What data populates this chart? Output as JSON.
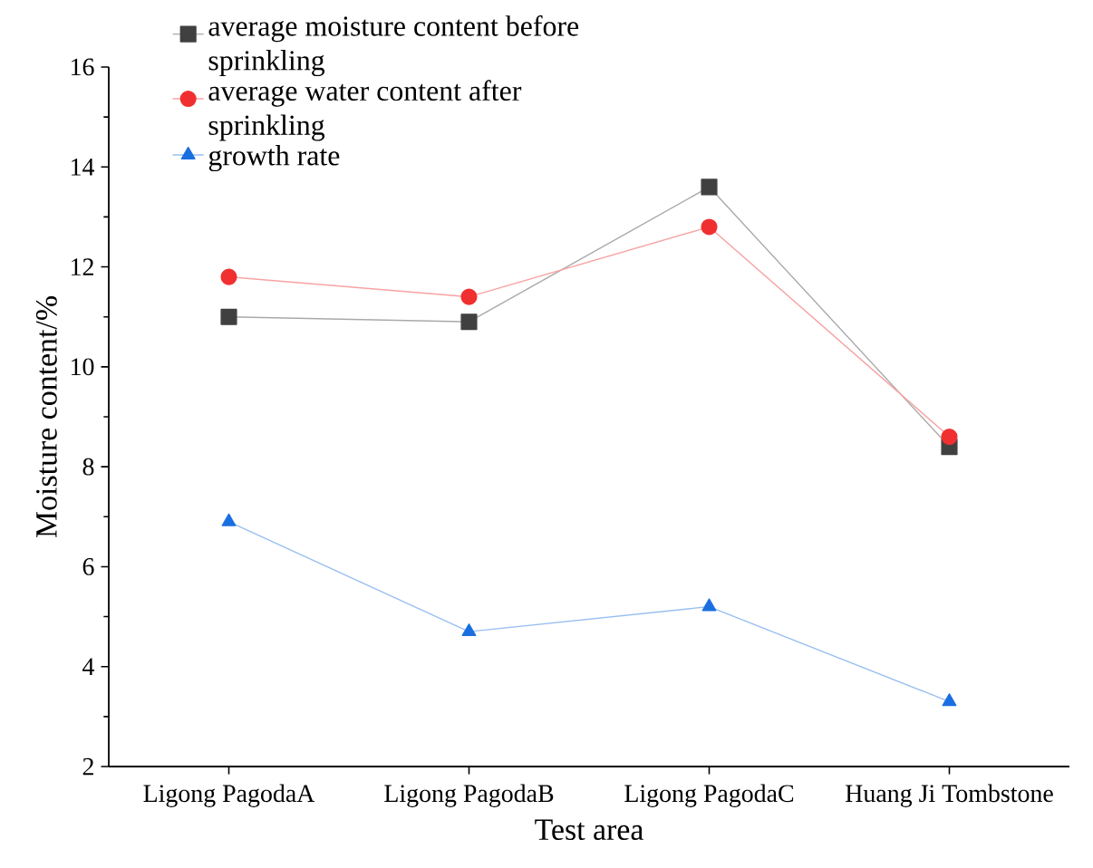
{
  "chart_data": {
    "type": "line",
    "xlabel": "Test area",
    "ylabel": "Moisture content/%",
    "categories": [
      "Ligong PagodaA",
      "Ligong PagodaB",
      "Ligong PagodaC",
      "Huang Ji Tombstone"
    ],
    "series": [
      {
        "name": "average moisture content before sprinkling",
        "color": "#404040",
        "marker": "square",
        "values": [
          11.0,
          10.9,
          13.6,
          8.4
        ]
      },
      {
        "name": "average water content after sprinkling",
        "color": "#f03030",
        "marker": "circle",
        "values": [
          11.8,
          11.4,
          12.8,
          8.6
        ]
      },
      {
        "name": "growth rate",
        "color": "#1a6fe0",
        "marker": "triangle",
        "values": [
          6.9,
          4.7,
          5.2,
          3.3
        ]
      }
    ],
    "ylim": [
      2,
      16
    ],
    "yticks": [
      2,
      4,
      6,
      8,
      10,
      12,
      14,
      16
    ],
    "grid": false,
    "legend": "top left",
    "line_style": "solid"
  }
}
